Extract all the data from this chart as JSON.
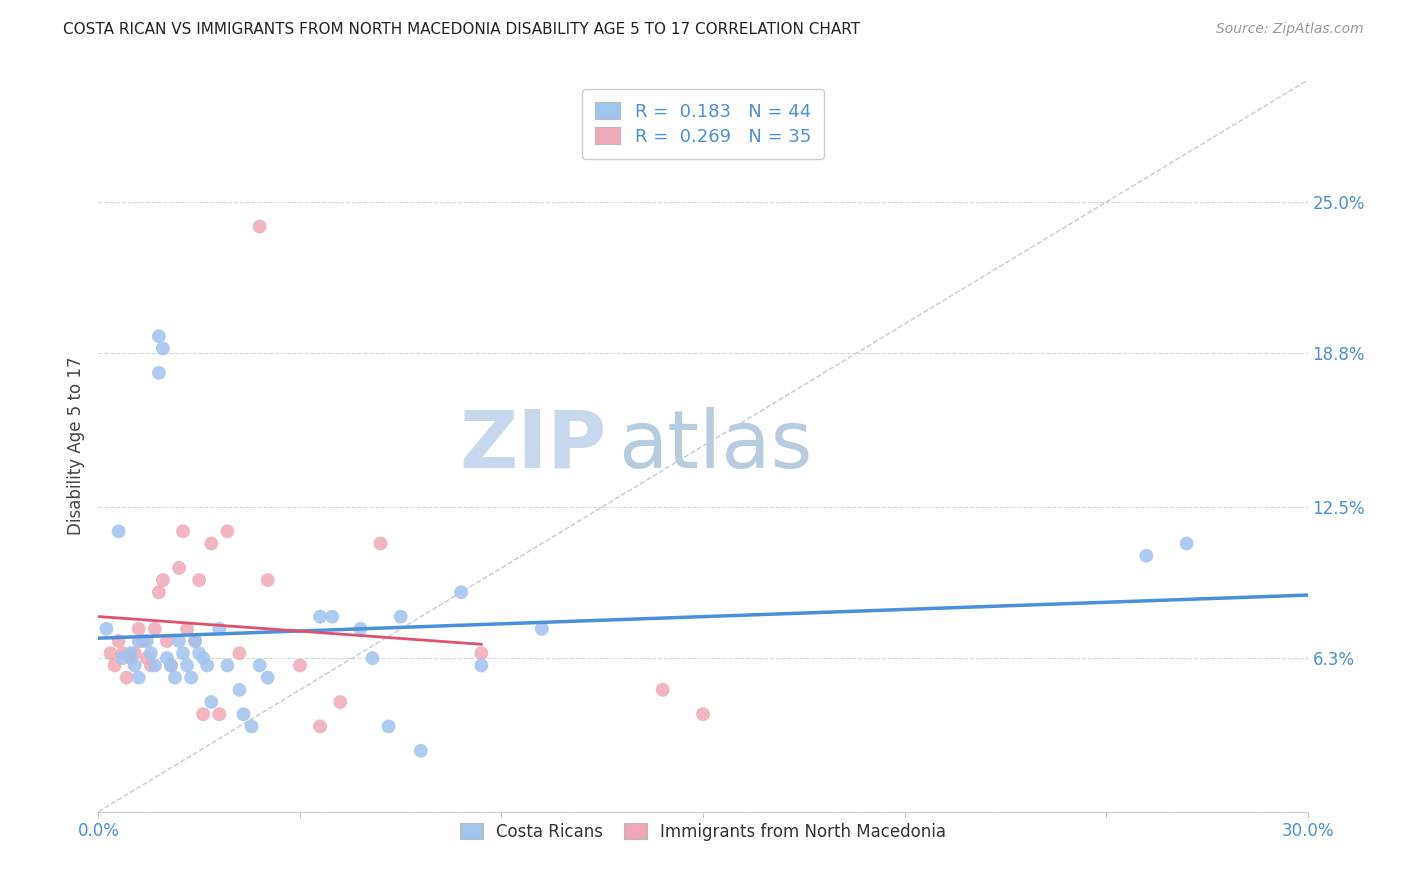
{
  "title": "COSTA RICAN VS IMMIGRANTS FROM NORTH MACEDONIA DISABILITY AGE 5 TO 17 CORRELATION CHART",
  "source": "Source: ZipAtlas.com",
  "ylabel": "Disability Age 5 to 17",
  "xlim": [
    0.0,
    0.3
  ],
  "ylim": [
    0.0,
    0.3
  ],
  "xticks": [
    0.0,
    0.05,
    0.1,
    0.15,
    0.2,
    0.25,
    0.3
  ],
  "xticklabels": [
    "0.0%",
    "",
    "",
    "",
    "",
    "",
    "30.0%"
  ],
  "yticks_right": [
    0.0,
    0.063,
    0.125,
    0.188,
    0.25
  ],
  "ytick_right_labels": [
    "",
    "6.3%",
    "12.5%",
    "18.8%",
    "25.0%"
  ],
  "background_color": "#ffffff",
  "grid_color": "#d8d8d8",
  "blue_color": "#a0c4f0",
  "pink_color": "#f0a8b8",
  "blue_line_color": "#4a90d9",
  "pink_line_color": "#e05070",
  "watermark_color": "#dce8f5",
  "R_blue": "0.183",
  "N_blue": "44",
  "R_pink": "0.269",
  "N_pink": "35",
  "blue_x": [
    0.002,
    0.005,
    0.006,
    0.008,
    0.009,
    0.01,
    0.01,
    0.012,
    0.013,
    0.014,
    0.015,
    0.015,
    0.016,
    0.017,
    0.018,
    0.019,
    0.02,
    0.021,
    0.022,
    0.023,
    0.024,
    0.025,
    0.026,
    0.027,
    0.028,
    0.03,
    0.032,
    0.035,
    0.036,
    0.038,
    0.04,
    0.042,
    0.055,
    0.058,
    0.065,
    0.068,
    0.072,
    0.075,
    0.08,
    0.09,
    0.095,
    0.11,
    0.26,
    0.27
  ],
  "blue_y": [
    0.075,
    0.115,
    0.063,
    0.065,
    0.06,
    0.07,
    0.055,
    0.07,
    0.065,
    0.06,
    0.195,
    0.18,
    0.19,
    0.063,
    0.06,
    0.055,
    0.07,
    0.065,
    0.06,
    0.055,
    0.07,
    0.065,
    0.063,
    0.06,
    0.045,
    0.075,
    0.06,
    0.05,
    0.04,
    0.035,
    0.06,
    0.055,
    0.08,
    0.08,
    0.075,
    0.063,
    0.035,
    0.08,
    0.025,
    0.09,
    0.06,
    0.075,
    0.105,
    0.11
  ],
  "pink_x": [
    0.003,
    0.004,
    0.005,
    0.006,
    0.007,
    0.008,
    0.009,
    0.01,
    0.011,
    0.012,
    0.013,
    0.014,
    0.015,
    0.016,
    0.017,
    0.018,
    0.02,
    0.021,
    0.022,
    0.024,
    0.025,
    0.026,
    0.028,
    0.03,
    0.032,
    0.035,
    0.04,
    0.042,
    0.05,
    0.055,
    0.06,
    0.07,
    0.095,
    0.14,
    0.15
  ],
  "pink_y": [
    0.065,
    0.06,
    0.07,
    0.065,
    0.055,
    0.063,
    0.065,
    0.075,
    0.07,
    0.063,
    0.06,
    0.075,
    0.09,
    0.095,
    0.07,
    0.06,
    0.1,
    0.115,
    0.075,
    0.07,
    0.095,
    0.04,
    0.11,
    0.04,
    0.115,
    0.065,
    0.24,
    0.095,
    0.06,
    0.035,
    0.045,
    0.11,
    0.065,
    0.05,
    0.04
  ]
}
